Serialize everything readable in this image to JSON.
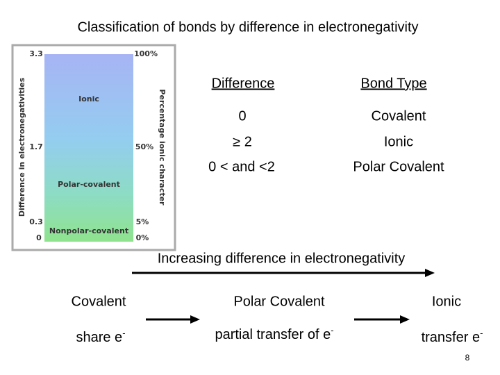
{
  "header": {
    "title": "Classification of bonds by difference in electronegativity"
  },
  "figure": {
    "left_title": "Difference in electronegativities",
    "right_title": "Percentage ionic character",
    "left_ticks": [
      "3.3",
      "1.7",
      "0.3",
      "0"
    ],
    "right_ticks": [
      "100%",
      "50%",
      "5%",
      "0%"
    ],
    "regions": [
      "Ionic",
      "Polar-covalent",
      "Nonpolar-covalent"
    ]
  },
  "table": {
    "header": [
      "Difference",
      "Bond Type"
    ],
    "rows": [
      [
        "0",
        "Covalent"
      ],
      [
        "≥ 2",
        "Ionic"
      ],
      [
        "0 < and <2",
        "Polar Covalent"
      ]
    ]
  },
  "spectrum": {
    "arrow_label": "Increasing difference in electronegativity",
    "items": [
      {
        "type": "Covalent",
        "note": "share e",
        "charge": "-"
      },
      {
        "type": "Polar Covalent",
        "note": "partial transfer of e",
        "charge": "-"
      },
      {
        "type": "Ionic",
        "note": "transfer e",
        "charge": "-"
      }
    ]
  },
  "footer": {
    "page_number": "8"
  }
}
